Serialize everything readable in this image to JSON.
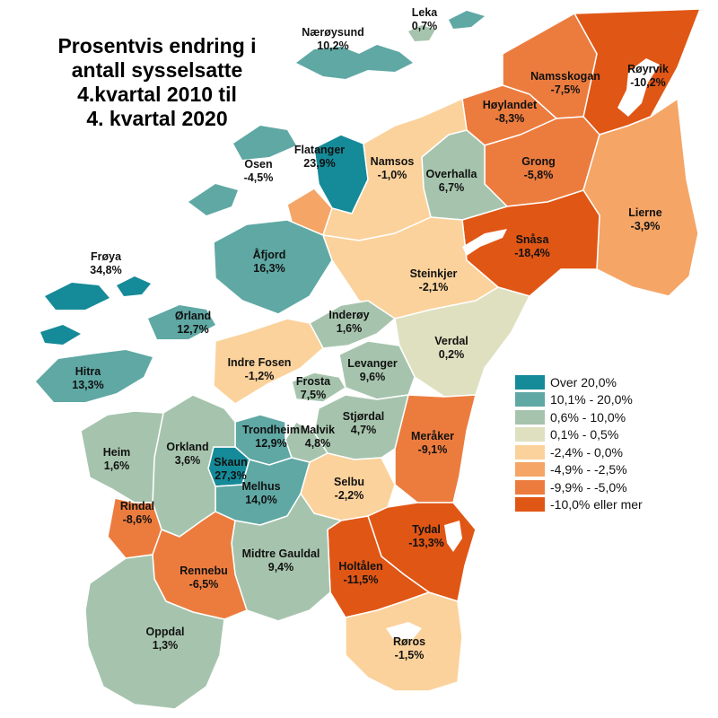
{
  "title": "Prosentvis endring i\nantall sysselsatte\n4.kvartal 2010 til\n4. kvartal 2020",
  "colors": {
    "over20": "#158a98",
    "c10_20": "#5fa8a4",
    "c06_10": "#a6c4ad",
    "c01_05": "#dfe0c0",
    "c24_0": "#fbd29c",
    "c49_25": "#f5a566",
    "c99_50": "#ec7c3e",
    "c10more": "#e05615"
  },
  "legend": [
    {
      "label": "Over 20,0%",
      "color": "#158a98"
    },
    {
      "label": "10,1% - 20,0%",
      "color": "#5fa8a4"
    },
    {
      "label": "0,6% - 10,0%",
      "color": "#a6c4ad"
    },
    {
      "label": "0,1% - 0,5%",
      "color": "#dfe0c0"
    },
    {
      "label": "-2,4% - 0,0%",
      "color": "#fbd29c"
    },
    {
      "label": "-4,9% - -2,5%",
      "color": "#f5a566"
    },
    {
      "label": "-9,9% - -5,0%",
      "color": "#ec7c3e"
    },
    {
      "label": "-10,0% eller mer",
      "color": "#e05615"
    }
  ],
  "municipalities": [
    {
      "name": "Leka",
      "value": "0,7%"
    },
    {
      "name": "Nærøysund",
      "value": "10,2%"
    },
    {
      "name": "Namsskogan",
      "value": "-7,5%"
    },
    {
      "name": "Røyrvik",
      "value": "-10,2%"
    },
    {
      "name": "Høylandet",
      "value": "-8,3%"
    },
    {
      "name": "Flatanger",
      "value": "23,9%"
    },
    {
      "name": "Osen",
      "value": "-4,5%"
    },
    {
      "name": "Namsos",
      "value": "-1,0%"
    },
    {
      "name": "Overhalla",
      "value": "6,7%"
    },
    {
      "name": "Grong",
      "value": "-5,8%"
    },
    {
      "name": "Lierne",
      "value": "-3,9%"
    },
    {
      "name": "Snåsa",
      "value": "-18,4%"
    },
    {
      "name": "Frøya",
      "value": "34,8%"
    },
    {
      "name": "Åfjord",
      "value": "16,3%"
    },
    {
      "name": "Steinkjer",
      "value": "-2,1%"
    },
    {
      "name": "Ørland",
      "value": "12,7%"
    },
    {
      "name": "Inderøy",
      "value": "1,6%"
    },
    {
      "name": "Verdal",
      "value": "0,2%"
    },
    {
      "name": "Indre Fosen",
      "value": "-1,2%"
    },
    {
      "name": "Hitra",
      "value": "13,3%"
    },
    {
      "name": "Levanger",
      "value": "9,6%"
    },
    {
      "name": "Frosta",
      "value": "7,5%"
    },
    {
      "name": "Trondheim",
      "value": "12,9%"
    },
    {
      "name": "Malvik",
      "value": "4,8%"
    },
    {
      "name": "Stjørdal",
      "value": "4,7%"
    },
    {
      "name": "Meråker",
      "value": "-9,1%"
    },
    {
      "name": "Heim",
      "value": "1,6%"
    },
    {
      "name": "Orkland",
      "value": "3,6%"
    },
    {
      "name": "Skaun",
      "value": "27,3%"
    },
    {
      "name": "Melhus",
      "value": "14,0%"
    },
    {
      "name": "Selbu",
      "value": "-2,2%"
    },
    {
      "name": "Rindal",
      "value": "-8,6%"
    },
    {
      "name": "Tydal",
      "value": "-13,3%"
    },
    {
      "name": "Rennebu",
      "value": "-6,5%"
    },
    {
      "name": "Midtre Gauldal",
      "value": "9,4%"
    },
    {
      "name": "Holtålen",
      "value": "-11,5%"
    },
    {
      "name": "Oppdal",
      "value": "1,3%"
    },
    {
      "name": "Røros",
      "value": "-1,5%"
    }
  ]
}
